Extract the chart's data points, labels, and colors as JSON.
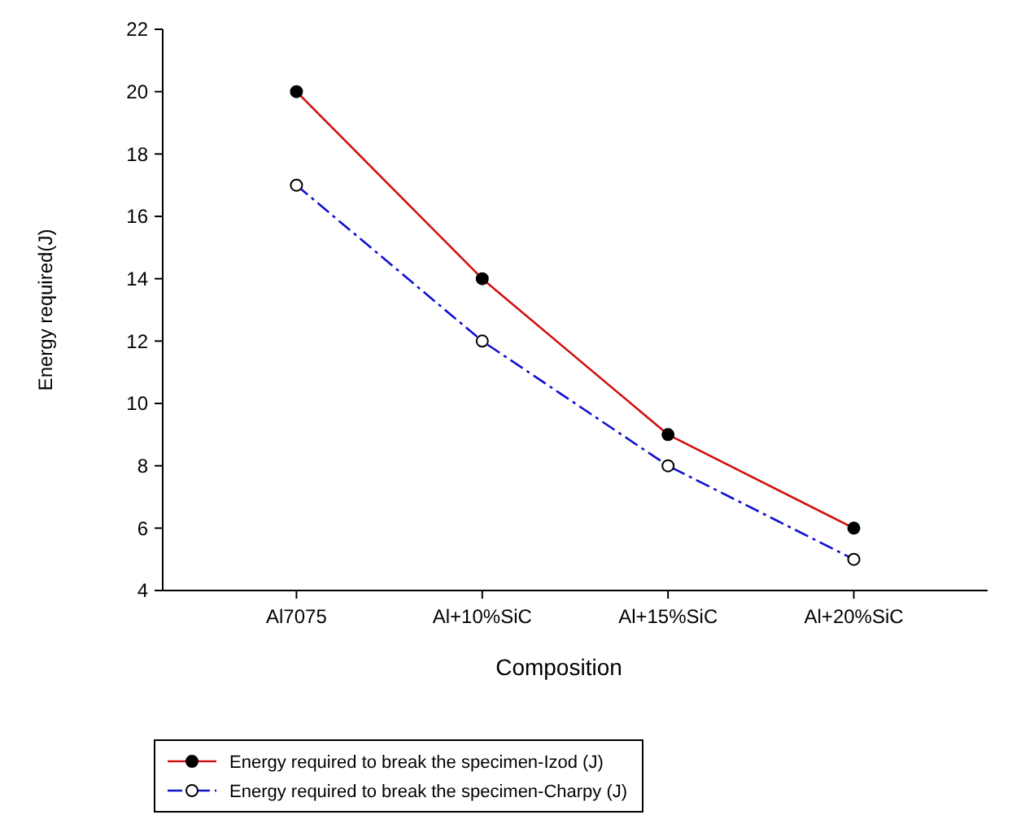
{
  "chart_data": {
    "type": "line",
    "xlabel": "Composition",
    "ylabel": "Energy required(J)",
    "categories": [
      "Al7075",
      "Al+10%SiC",
      "Al+15%SiC",
      "Al+20%SiC"
    ],
    "ylim": [
      4,
      22
    ],
    "yticks": [
      4,
      6,
      8,
      10,
      12,
      14,
      16,
      18,
      20,
      22
    ],
    "grid": false,
    "legend": "bottom",
    "marker": "circle",
    "series": [
      {
        "name": "Energy required to break the specimen-Izod (J)",
        "color": "#d01010",
        "values": [
          20,
          14,
          9,
          6
        ],
        "line_style": "solid"
      },
      {
        "name": "Energy required to break the specimen-Charpy (J)",
        "color": "#1010d0",
        "values": [
          17,
          12,
          8,
          5
        ],
        "line_style": "dashed"
      }
    ]
  }
}
